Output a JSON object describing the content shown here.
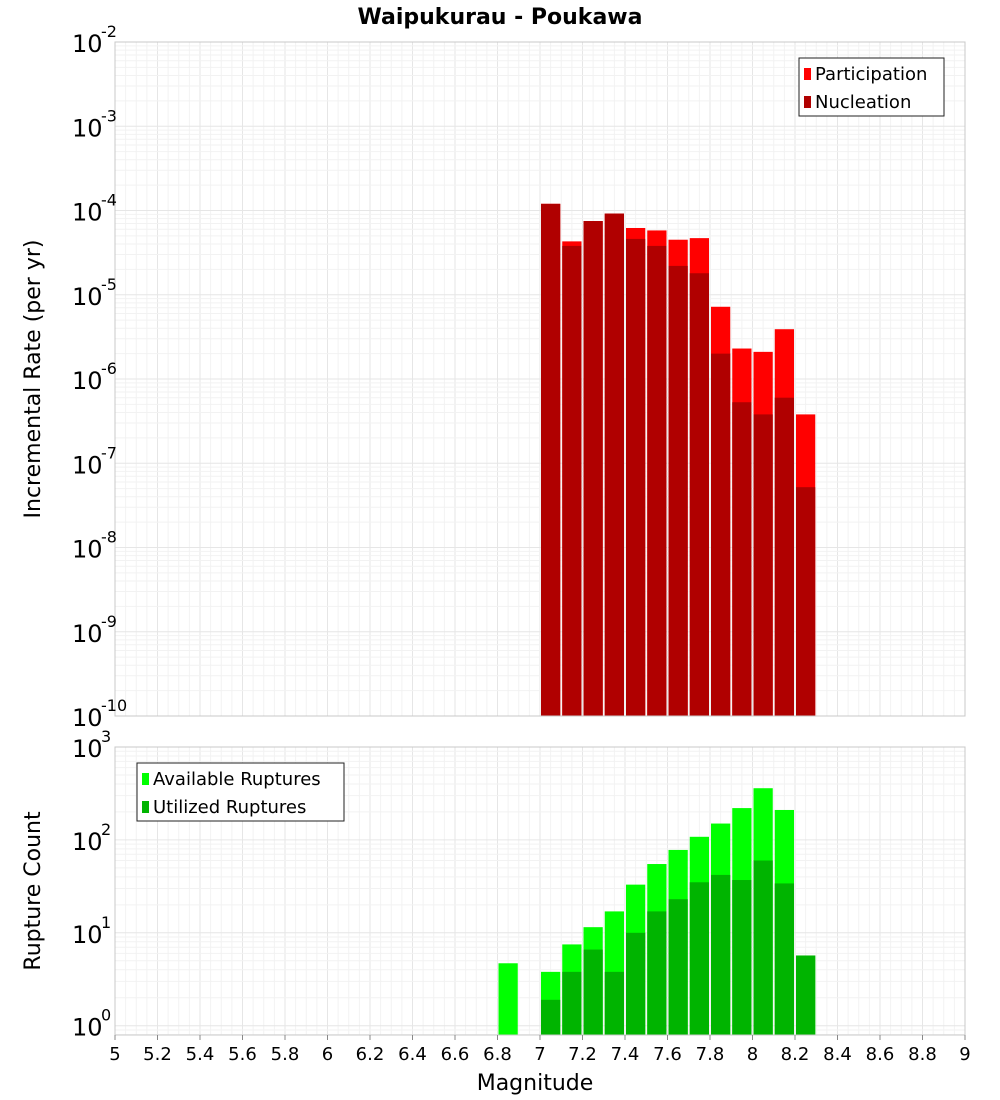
{
  "title": "Waipukurau - Poukawa",
  "chart_data": [
    {
      "type": "bar",
      "panel": "rates",
      "ylabel": "Incremental Rate (per yr)",
      "yscale": "log",
      "ylim_exp": [
        -10,
        -2
      ],
      "ytick_exponents": [
        "-10",
        "-9",
        "-8",
        "-7",
        "-6",
        "-5",
        "-4",
        "-3",
        "-2"
      ],
      "legend_position": "top-right",
      "bin_width": 0.1,
      "series": [
        {
          "name": "Participation",
          "color": "#ff0000",
          "x": [
            7.05,
            7.15,
            7.25,
            7.35,
            7.45,
            7.55,
            7.65,
            7.75,
            7.85,
            7.95,
            8.05,
            8.15,
            8.25
          ],
          "values": [
            0.00012,
            4.3e-05,
            7.5e-05,
            9.2e-05,
            6.2e-05,
            5.8e-05,
            4.5e-05,
            4.7e-05,
            7.2e-06,
            2.3e-06,
            2.1e-06,
            3.9e-06,
            3.8e-07
          ]
        },
        {
          "name": "Nucleation",
          "color": "#b00000",
          "x": [
            7.05,
            7.15,
            7.25,
            7.35,
            7.45,
            7.55,
            7.65,
            7.75,
            7.85,
            7.95,
            8.05,
            8.15,
            8.25
          ],
          "values": [
            0.00012,
            3.8e-05,
            7.5e-05,
            9.2e-05,
            4.6e-05,
            3.8e-05,
            2.2e-05,
            1.8e-05,
            2e-06,
            5.3e-07,
            3.8e-07,
            6e-07,
            5.2e-08
          ]
        }
      ]
    },
    {
      "type": "bar",
      "panel": "counts",
      "xlabel": "Magnitude",
      "ylabel": "Rupture Count",
      "yscale": "log",
      "ylim_exp": [
        -0.1,
        3
      ],
      "ytick_exponents": [
        "0",
        "1",
        "2",
        "3"
      ],
      "xlim": [
        5,
        9
      ],
      "xticks": [
        "5",
        "5.2",
        "5.4",
        "5.6",
        "5.8",
        "6",
        "6.2",
        "6.4",
        "6.6",
        "6.8",
        "7",
        "7.2",
        "7.4",
        "7.6",
        "7.8",
        "8",
        "8.2",
        "8.4",
        "8.6",
        "8.8",
        "9"
      ],
      "legend_position": "top-left",
      "bin_width": 0.1,
      "series": [
        {
          "name": "Available Ruptures",
          "color": "#00ff00",
          "x": [
            6.85,
            7.05,
            7.15,
            7.25,
            7.35,
            7.45,
            7.55,
            7.65,
            7.75,
            7.85,
            7.95,
            8.05,
            8.15,
            8.25
          ],
          "values": [
            4.7,
            3.8,
            7.5,
            11.5,
            17,
            33,
            55,
            78,
            108,
            150,
            220,
            360,
            210,
            5.7
          ]
        },
        {
          "name": "Utilized Ruptures",
          "color": "#00b400",
          "x": [
            7.05,
            7.15,
            7.25,
            7.35,
            7.45,
            7.55,
            7.65,
            7.75,
            7.85,
            7.95,
            8.05,
            8.15,
            8.25
          ],
          "values": [
            1.9,
            3.8,
            6.6,
            3.8,
            10,
            17,
            23,
            35,
            42,
            37,
            60,
            34,
            5.7
          ]
        }
      ]
    }
  ]
}
